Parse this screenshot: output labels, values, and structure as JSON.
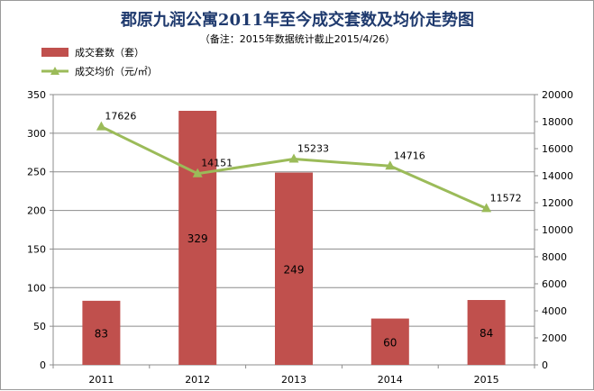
{
  "chart_data": {
    "type": "bar+line",
    "title": "郡原九润公寓2011年至今成交套数及均价走势图",
    "subtitle": "（备注：2015年数据统计截止2015/4/26）",
    "categories": [
      "2011",
      "2012",
      "2013",
      "2014",
      "2015"
    ],
    "series": [
      {
        "name": "成交套数（套）",
        "type": "bar",
        "axis": "left",
        "color": "#c0504d",
        "values": [
          83,
          329,
          249,
          60,
          84
        ],
        "labels": [
          "83",
          "329",
          "249",
          "60",
          "84"
        ]
      },
      {
        "name": "成交均价（元/㎡）",
        "type": "line",
        "axis": "right",
        "color": "#9bbb59",
        "marker": "triangle",
        "values": [
          17626,
          14151,
          15233,
          14716,
          11572
        ],
        "labels": [
          "17626",
          "14151",
          "15233",
          "14716",
          "11572"
        ]
      }
    ],
    "y_left": {
      "min": 0,
      "max": 350,
      "step": 50,
      "ticks": [
        "0",
        "50",
        "100",
        "150",
        "200",
        "250",
        "300",
        "350"
      ]
    },
    "y_right": {
      "min": 0,
      "max": 20000,
      "step": 2000,
      "ticks": [
        "0",
        "2000",
        "4000",
        "6000",
        "8000",
        "10000",
        "12000",
        "14000",
        "16000",
        "18000",
        "20000"
      ]
    },
    "grid": true,
    "legend_position": "top-left"
  }
}
